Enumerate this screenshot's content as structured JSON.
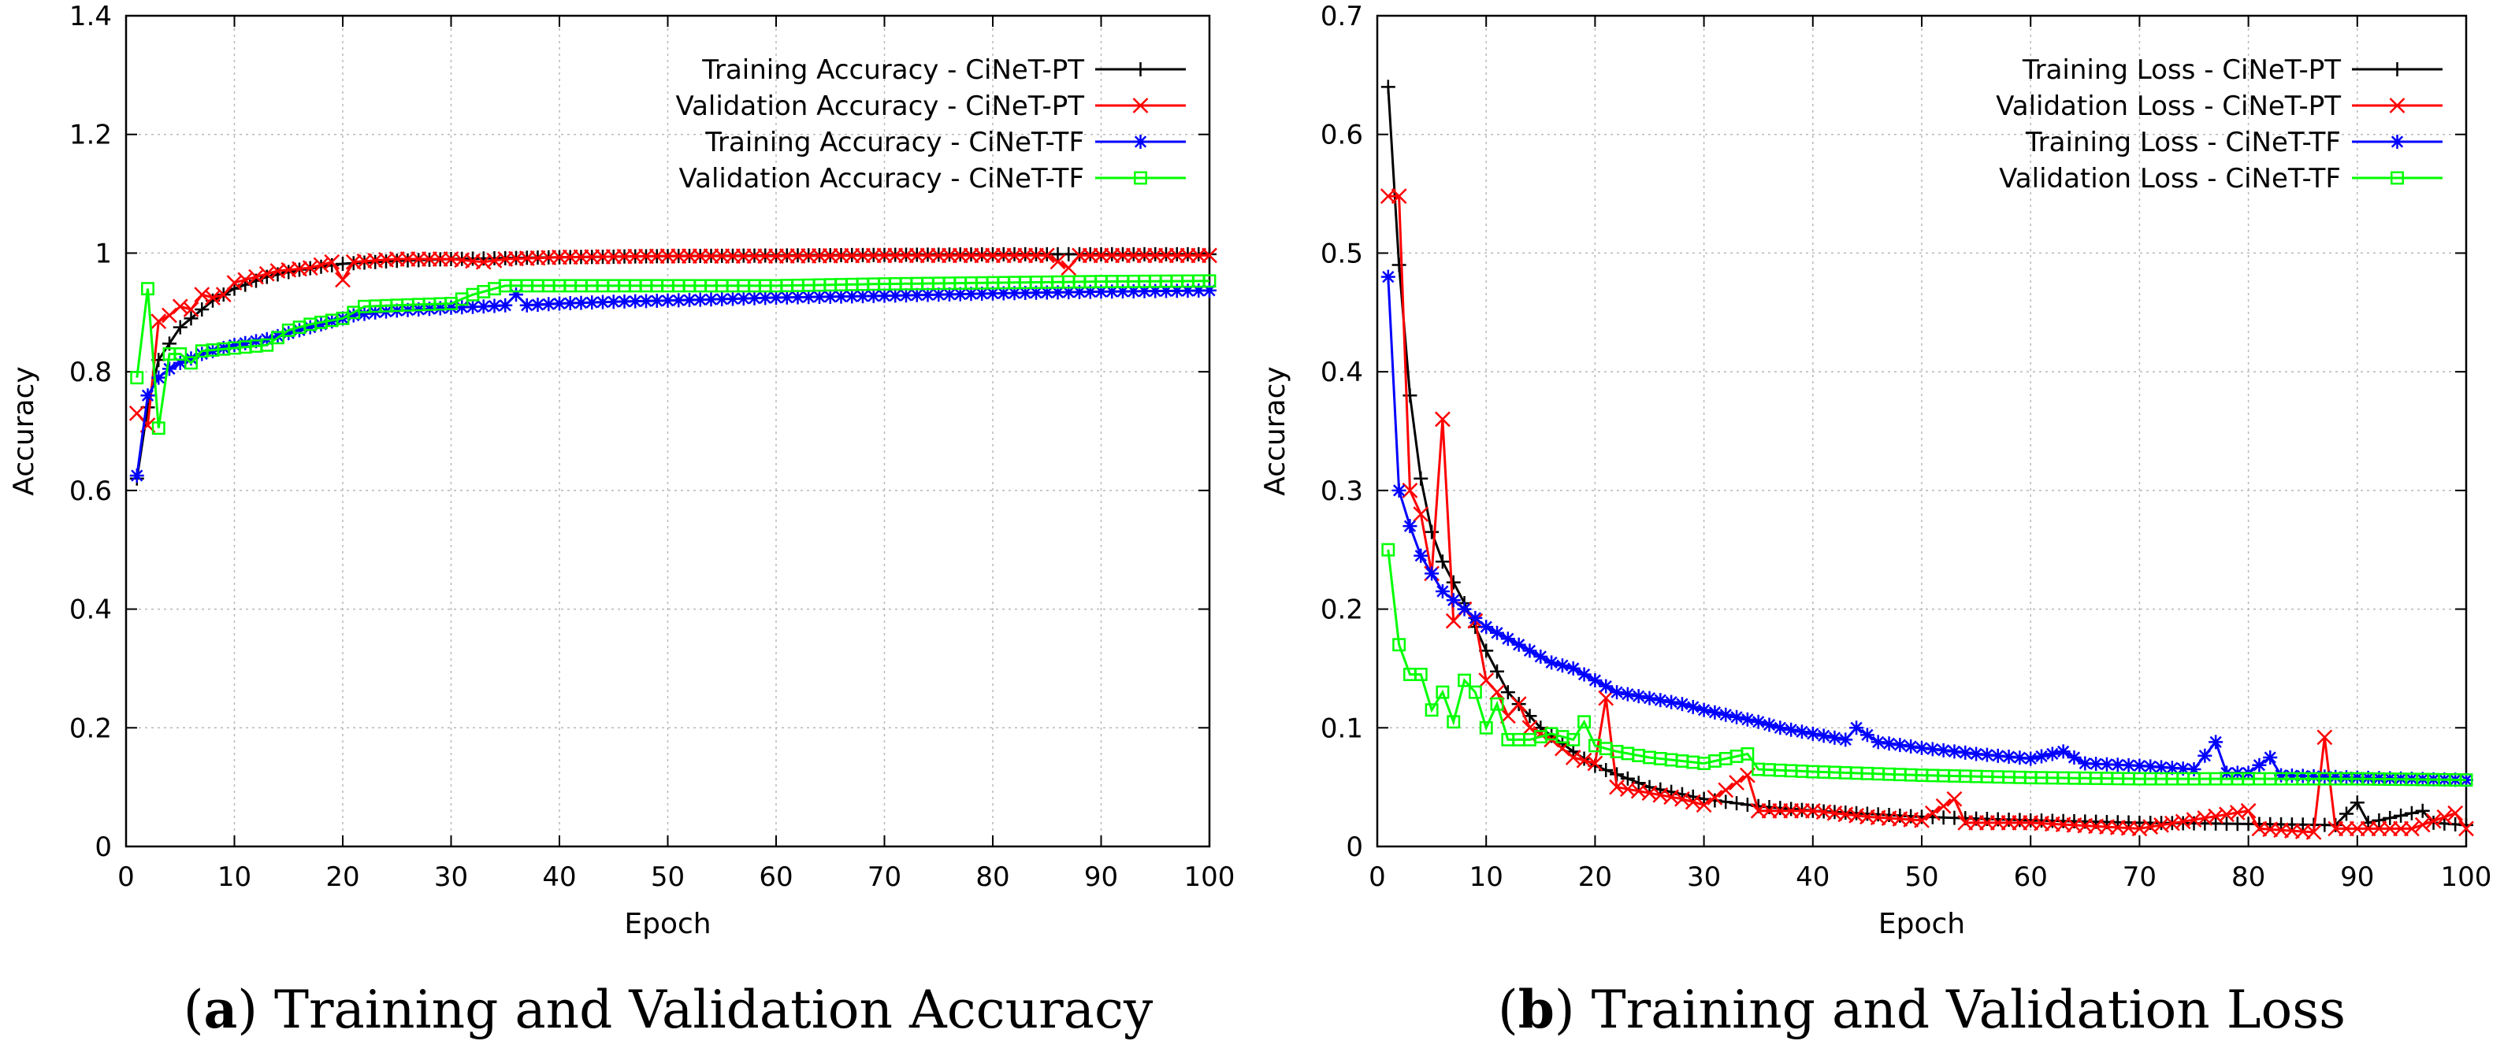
{
  "chart_data": [
    {
      "type": "line",
      "xlabel": "Epoch",
      "ylabel": "Accuracy",
      "xlim": [
        0,
        100
      ],
      "ylim": [
        0,
        1.4
      ],
      "xticks": [
        0,
        10,
        20,
        30,
        40,
        50,
        60,
        70,
        80,
        90,
        100
      ],
      "yticks": [
        0,
        0.2,
        0.4,
        0.6,
        0.8,
        1,
        1.2,
        1.4
      ],
      "grid": true,
      "legend_position": "top-right",
      "caption": {
        "letter": "(a)",
        "text": "Training and Validation Accuracy"
      },
      "series": [
        {
          "name": "Training Accuracy - CiNeT-PT",
          "color": "#000000",
          "marker": "plus",
          "anchors": [
            [
              1,
              0.62
            ],
            [
              2,
              0.74
            ],
            [
              3,
              0.82
            ],
            [
              5,
              0.875
            ],
            [
              8,
              0.92
            ],
            [
              10,
              0.94
            ],
            [
              13,
              0.96
            ],
            [
              16,
              0.972
            ],
            [
              20,
              0.982
            ],
            [
              25,
              0.987
            ],
            [
              30,
              0.99
            ],
            [
              40,
              0.993
            ],
            [
              50,
              0.995
            ],
            [
              60,
              0.996
            ],
            [
              70,
              0.997
            ],
            [
              80,
              0.998
            ],
            [
              90,
              0.998
            ],
            [
              100,
              0.998
            ]
          ]
        },
        {
          "name": "Validation Accuracy - CiNeT-PT",
          "color": "#ff0000",
          "marker": "cross",
          "anchors": [
            [
              1,
              0.73
            ],
            [
              2,
              0.71
            ],
            [
              3,
              0.885
            ],
            [
              4,
              0.895
            ],
            [
              5,
              0.91
            ],
            [
              6,
              0.905
            ],
            [
              7,
              0.93
            ],
            [
              8,
              0.925
            ],
            [
              9,
              0.93
            ],
            [
              10,
              0.95
            ],
            [
              12,
              0.96
            ],
            [
              14,
              0.97
            ],
            [
              17,
              0.975
            ],
            [
              19,
              0.985
            ],
            [
              20,
              0.955
            ],
            [
              21,
              0.985
            ],
            [
              25,
              0.99
            ],
            [
              30,
              0.99
            ],
            [
              33,
              0.985
            ],
            [
              35,
              0.99
            ],
            [
              40,
              0.993
            ],
            [
              50,
              0.995
            ],
            [
              60,
              0.995
            ],
            [
              70,
              0.996
            ],
            [
              80,
              0.996
            ],
            [
              85,
              0.996
            ],
            [
              87,
              0.975
            ],
            [
              88,
              0.996
            ],
            [
              100,
              0.996
            ]
          ]
        },
        {
          "name": "Training Accuracy - CiNeT-TF",
          "color": "#0000ff",
          "marker": "star",
          "anchors": [
            [
              1,
              0.625
            ],
            [
              2,
              0.76
            ],
            [
              3,
              0.79
            ],
            [
              4,
              0.805
            ],
            [
              5,
              0.815
            ],
            [
              7,
              0.83
            ],
            [
              10,
              0.845
            ],
            [
              13,
              0.855
            ],
            [
              16,
              0.87
            ],
            [
              19,
              0.885
            ],
            [
              21,
              0.895
            ],
            [
              23,
              0.9
            ],
            [
              25,
              0.903
            ],
            [
              30,
              0.908
            ],
            [
              33,
              0.91
            ],
            [
              35,
              0.912
            ],
            [
              36,
              0.93
            ],
            [
              37,
              0.912
            ],
            [
              40,
              0.915
            ],
            [
              45,
              0.918
            ],
            [
              50,
              0.92
            ],
            [
              60,
              0.925
            ],
            [
              70,
              0.928
            ],
            [
              80,
              0.932
            ],
            [
              90,
              0.935
            ],
            [
              100,
              0.937
            ]
          ]
        },
        {
          "name": "Validation Accuracy - CiNeT-TF",
          "color": "#00ff00",
          "marker": "square",
          "anchors": [
            [
              1,
              0.79
            ],
            [
              2,
              0.94
            ],
            [
              3,
              0.705
            ],
            [
              4,
              0.83
            ],
            [
              5,
              0.83
            ],
            [
              6,
              0.815
            ],
            [
              7,
              0.835
            ],
            [
              10,
              0.84
            ],
            [
              13,
              0.845
            ],
            [
              15,
              0.87
            ],
            [
              17,
              0.88
            ],
            [
              20,
              0.89
            ],
            [
              22,
              0.91
            ],
            [
              25,
              0.912
            ],
            [
              30,
              0.915
            ],
            [
              32,
              0.93
            ],
            [
              35,
              0.945
            ],
            [
              40,
              0.945
            ],
            [
              45,
              0.945
            ],
            [
              50,
              0.945
            ],
            [
              60,
              0.945
            ],
            [
              70,
              0.948
            ],
            [
              80,
              0.95
            ],
            [
              90,
              0.952
            ],
            [
              100,
              0.953
            ]
          ]
        }
      ]
    },
    {
      "type": "line",
      "xlabel": "Epoch",
      "ylabel": "Accuracy",
      "xlim": [
        0,
        100
      ],
      "ylim": [
        0,
        0.7
      ],
      "xticks": [
        0,
        10,
        20,
        30,
        40,
        50,
        60,
        70,
        80,
        90,
        100
      ],
      "yticks": [
        0,
        0.1,
        0.2,
        0.3,
        0.4,
        0.5,
        0.6,
        0.7
      ],
      "grid": true,
      "legend_position": "top-right",
      "caption": {
        "letter": "(b)",
        "text": "Training and Validation Loss"
      },
      "series": [
        {
          "name": "Training Loss - CiNeT-PT",
          "color": "#000000",
          "marker": "plus",
          "anchors": [
            [
              1,
              0.64
            ],
            [
              2,
              0.49
            ],
            [
              3,
              0.38
            ],
            [
              4,
              0.31
            ],
            [
              5,
              0.265
            ],
            [
              6,
              0.24
            ],
            [
              8,
              0.205
            ],
            [
              10,
              0.165
            ],
            [
              12,
              0.13
            ],
            [
              15,
              0.1
            ],
            [
              18,
              0.08
            ],
            [
              20,
              0.068
            ],
            [
              25,
              0.05
            ],
            [
              30,
              0.04
            ],
            [
              35,
              0.034
            ],
            [
              40,
              0.03
            ],
            [
              50,
              0.025
            ],
            [
              60,
              0.022
            ],
            [
              70,
              0.02
            ],
            [
              80,
              0.019
            ],
            [
              88,
              0.018
            ],
            [
              90,
              0.037
            ],
            [
              91,
              0.02
            ],
            [
              96,
              0.03
            ],
            [
              97,
              0.02
            ],
            [
              100,
              0.018
            ]
          ]
        },
        {
          "name": "Validation Loss - CiNeT-PT",
          "color": "#ff0000",
          "marker": "cross",
          "anchors": [
            [
              1,
              0.548
            ],
            [
              2,
              0.548
            ],
            [
              3,
              0.3
            ],
            [
              4,
              0.28
            ],
            [
              5,
              0.23
            ],
            [
              6,
              0.36
            ],
            [
              7,
              0.19
            ],
            [
              8,
              0.2
            ],
            [
              9,
              0.19
            ],
            [
              10,
              0.14
            ],
            [
              11,
              0.13
            ],
            [
              12,
              0.11
            ],
            [
              13,
              0.12
            ],
            [
              14,
              0.1
            ],
            [
              16,
              0.09
            ],
            [
              18,
              0.075
            ],
            [
              20,
              0.07
            ],
            [
              21,
              0.125
            ],
            [
              22,
              0.05
            ],
            [
              25,
              0.045
            ],
            [
              28,
              0.04
            ],
            [
              30,
              0.035
            ],
            [
              34,
              0.06
            ],
            [
              35,
              0.03
            ],
            [
              40,
              0.03
            ],
            [
              45,
              0.025
            ],
            [
              50,
              0.022
            ],
            [
              53,
              0.04
            ],
            [
              54,
              0.02
            ],
            [
              60,
              0.02
            ],
            [
              70,
              0.015
            ],
            [
              80,
              0.03
            ],
            [
              81,
              0.015
            ],
            [
              86,
              0.012
            ],
            [
              87,
              0.092
            ],
            [
              88,
              0.015
            ],
            [
              95,
              0.015
            ],
            [
              99,
              0.028
            ],
            [
              100,
              0.015
            ]
          ]
        },
        {
          "name": "Training Loss - CiNeT-TF",
          "color": "#0000ff",
          "marker": "star",
          "anchors": [
            [
              1,
              0.48
            ],
            [
              2,
              0.3
            ],
            [
              3,
              0.27
            ],
            [
              4,
              0.245
            ],
            [
              5,
              0.23
            ],
            [
              6,
              0.215
            ],
            [
              8,
              0.2
            ],
            [
              10,
              0.185
            ],
            [
              12,
              0.175
            ],
            [
              14,
              0.165
            ],
            [
              16,
              0.155
            ],
            [
              18,
              0.15
            ],
            [
              20,
              0.14
            ],
            [
              22,
              0.13
            ],
            [
              25,
              0.125
            ],
            [
              28,
              0.12
            ],
            [
              30,
              0.115
            ],
            [
              35,
              0.105
            ],
            [
              37,
              0.1
            ],
            [
              40,
              0.095
            ],
            [
              43,
              0.09
            ],
            [
              44,
              0.1
            ],
            [
              46,
              0.088
            ],
            [
              50,
              0.083
            ],
            [
              55,
              0.078
            ],
            [
              60,
              0.074
            ],
            [
              63,
              0.08
            ],
            [
              65,
              0.07
            ],
            [
              70,
              0.068
            ],
            [
              75,
              0.065
            ],
            [
              77,
              0.088
            ],
            [
              78,
              0.062
            ],
            [
              80,
              0.062
            ],
            [
              82,
              0.075
            ],
            [
              83,
              0.06
            ],
            [
              90,
              0.058
            ],
            [
              100,
              0.056
            ]
          ]
        },
        {
          "name": "Validation Loss - CiNeT-TF",
          "color": "#00ff00",
          "marker": "square",
          "anchors": [
            [
              1,
              0.25
            ],
            [
              2,
              0.17
            ],
            [
              3,
              0.145
            ],
            [
              4,
              0.145
            ],
            [
              5,
              0.115
            ],
            [
              6,
              0.13
            ],
            [
              7,
              0.105
            ],
            [
              8,
              0.14
            ],
            [
              9,
              0.13
            ],
            [
              10,
              0.1
            ],
            [
              11,
              0.12
            ],
            [
              12,
              0.09
            ],
            [
              14,
              0.09
            ],
            [
              16,
              0.095
            ],
            [
              18,
              0.09
            ],
            [
              19,
              0.105
            ],
            [
              20,
              0.085
            ],
            [
              22,
              0.08
            ],
            [
              25,
              0.075
            ],
            [
              30,
              0.07
            ],
            [
              34,
              0.078
            ],
            [
              35,
              0.065
            ],
            [
              40,
              0.063
            ],
            [
              50,
              0.06
            ],
            [
              60,
              0.058
            ],
            [
              70,
              0.057
            ],
            [
              80,
              0.057
            ],
            [
              90,
              0.057
            ],
            [
              100,
              0.056
            ]
          ]
        }
      ]
    }
  ]
}
